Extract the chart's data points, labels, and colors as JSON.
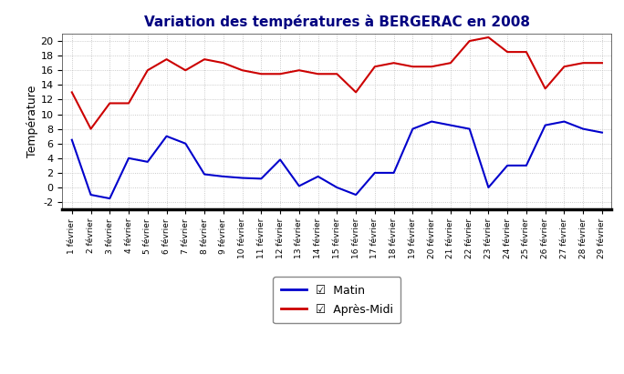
{
  "title": "Variation des températures à BERGERAC en 2008",
  "ylabel": "Température",
  "xlabels": [
    "1 février",
    "2 février",
    "3 février",
    "4 février",
    "5 février",
    "6 février",
    "7 février",
    "8 février",
    "9 février",
    "10 février",
    "11 février",
    "12 février",
    "13 février",
    "14 février",
    "15 février",
    "16 février",
    "17 février",
    "18 février",
    "19 février",
    "20 février",
    "21 février",
    "22 février",
    "23 février",
    "24 février",
    "25 février",
    "26 février",
    "27 février",
    "28 février",
    "29 février"
  ],
  "matin": [
    6.5,
    -1,
    -1.5,
    4,
    3.5,
    7,
    6,
    1.8,
    1.5,
    1.3,
    1.2,
    3.8,
    0.2,
    1.5,
    0,
    -1,
    2,
    2,
    8,
    9,
    8.5,
    8,
    0,
    3,
    3,
    8.5,
    9,
    8,
    7.5
  ],
  "apres_midi": [
    13,
    8,
    11.5,
    11.5,
    16,
    17.5,
    16,
    17.5,
    17,
    16,
    15.5,
    15.5,
    16,
    15.5,
    15.5,
    13,
    16.5,
    17,
    16.5,
    16.5,
    17,
    20,
    20.5,
    18.5,
    18.5,
    13.5,
    16.5,
    17,
    17
  ],
  "matin_color": "#0000cc",
  "apres_midi_color": "#cc0000",
  "ylim": [
    -3,
    21
  ],
  "yticks": [
    -2,
    0,
    2,
    4,
    6,
    8,
    10,
    12,
    14,
    16,
    18,
    20
  ],
  "bg_color": "#ffffff",
  "plot_bg_color": "#ffffff",
  "grid_color": "#bbbbbb",
  "title_color": "#000080",
  "title_fontsize": 11,
  "legend_matin": "Matin",
  "legend_apres_midi": "Après-Midi"
}
